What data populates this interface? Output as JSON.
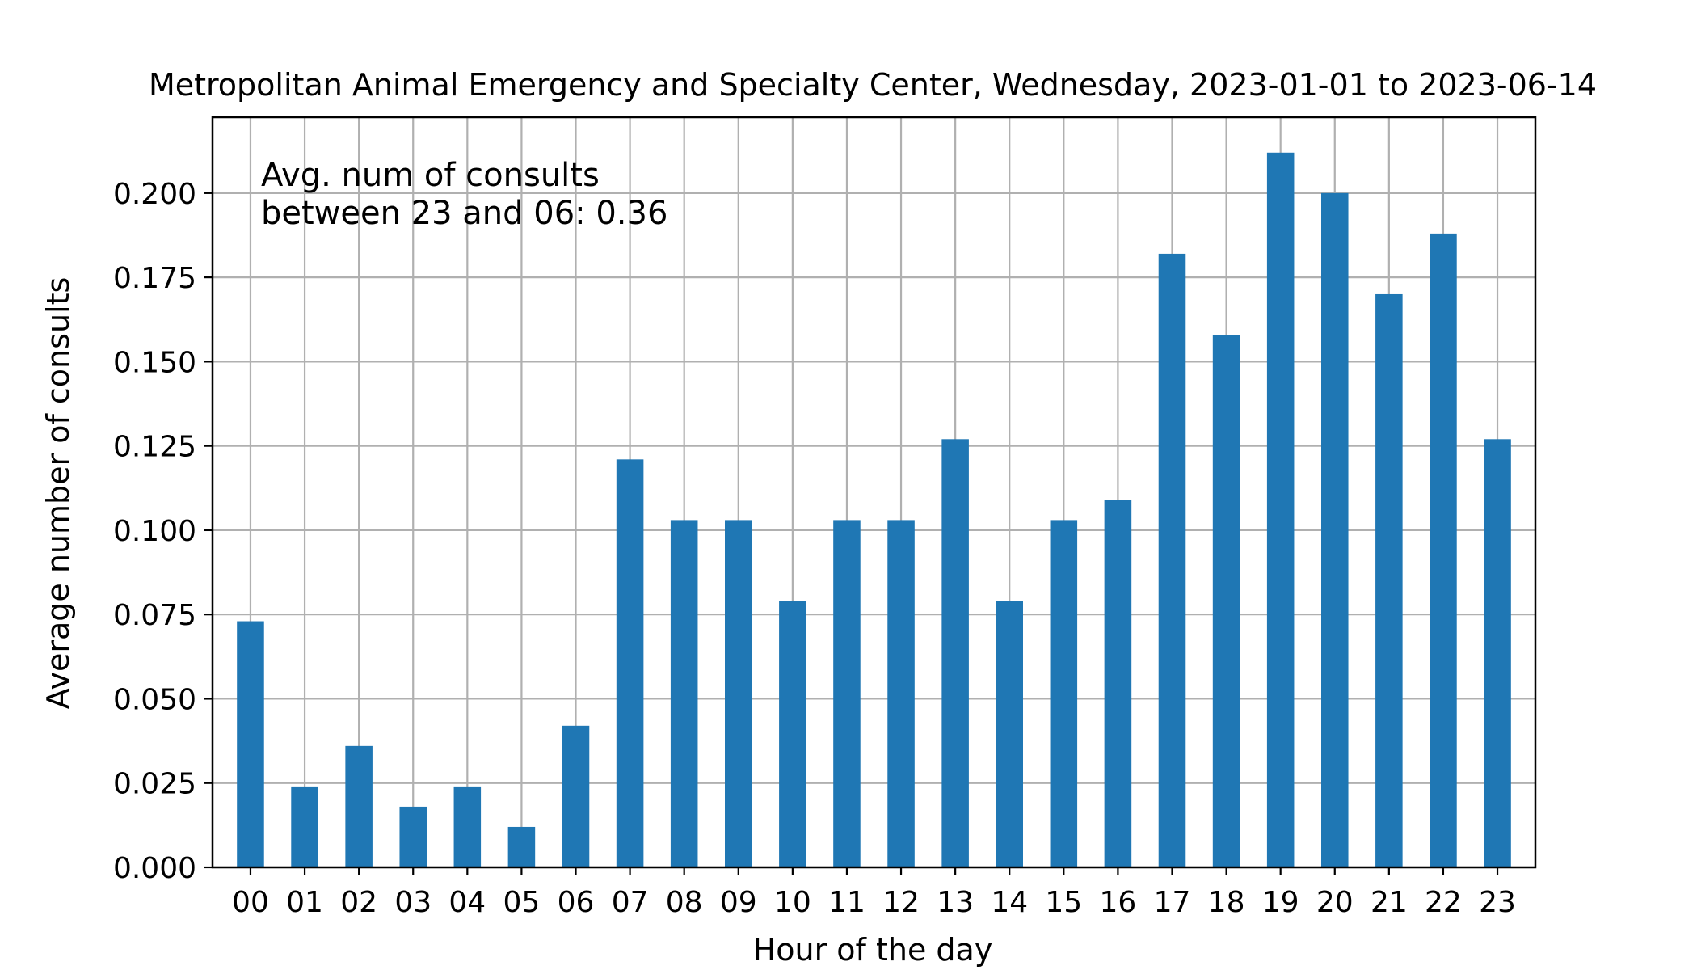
{
  "chart_data": {
    "type": "bar",
    "title": "Metropolitan Animal Emergency and Specialty Center, Wednesday, 2023-01-01 to 2023-06-14",
    "xlabel": "Hour of the day",
    "ylabel": "Average number of consults",
    "categories": [
      "00",
      "01",
      "02",
      "03",
      "04",
      "05",
      "06",
      "07",
      "08",
      "09",
      "10",
      "11",
      "12",
      "13",
      "14",
      "15",
      "16",
      "17",
      "18",
      "19",
      "20",
      "21",
      "22",
      "23"
    ],
    "values": [
      0.073,
      0.024,
      0.036,
      0.018,
      0.024,
      0.012,
      0.042,
      0.121,
      0.103,
      0.103,
      0.079,
      0.103,
      0.103,
      0.127,
      0.079,
      0.103,
      0.109,
      0.182,
      0.158,
      0.212,
      0.2,
      0.17,
      0.188,
      0.127
    ],
    "ylim": [
      0,
      0.2225
    ],
    "yticks": [
      0.0,
      0.025,
      0.05,
      0.075,
      0.1,
      0.125,
      0.15,
      0.175,
      0.2
    ],
    "ytick_labels": [
      "0.000",
      "0.025",
      "0.050",
      "0.075",
      "0.100",
      "0.125",
      "0.150",
      "0.175",
      "0.200"
    ],
    "grid": true,
    "bar_color": "#1f77b4",
    "annotation": {
      "line1": "Avg. num of consults",
      "line2": "between 23 and 06: 0.36"
    }
  }
}
